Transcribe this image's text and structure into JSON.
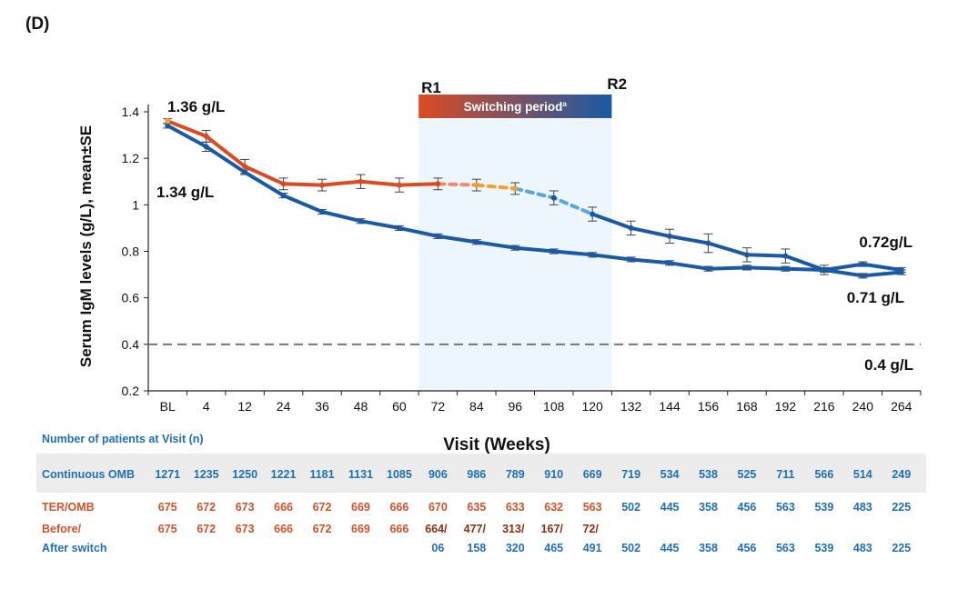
{
  "panel_label": "(D)",
  "colors": {
    "continuous": "#1a5aa5",
    "ter_omb": "#db4b22",
    "switch_orange": "#f0a030",
    "switch_lightblue": "#5aa7dd",
    "shade": "#eef6fd",
    "table_band": "#ececec",
    "table_blue": "#1f6fb5",
    "table_orange": "#d2522a",
    "reference_line": "#777777"
  },
  "chart_data": {
    "type": "line",
    "ylabel": "Serum IgM levels (g/L), mean±SE",
    "xlabel": "Visit (Weeks)",
    "ylim": [
      0.2,
      1.4
    ],
    "yticks": [
      "0.2",
      "0.4",
      "0.6",
      "0.8",
      "1",
      "1.2",
      "1.4"
    ],
    "categories": [
      "BL",
      "4",
      "12",
      "24",
      "36",
      "48",
      "60",
      "72",
      "84",
      "96",
      "108",
      "120",
      "132",
      "144",
      "156",
      "168",
      "192",
      "216",
      "240",
      "264"
    ],
    "series": [
      {
        "name": "Continuous OMB",
        "values": [
          1.34,
          1.25,
          1.14,
          1.04,
          0.97,
          0.93,
          0.9,
          0.865,
          0.84,
          0.815,
          0.8,
          0.785,
          0.765,
          0.75,
          0.725,
          0.73,
          0.725,
          0.72,
          0.745,
          0.72
        ],
        "se": [
          0.01,
          0.02,
          0.01,
          0.01,
          0.01,
          0.01,
          0.01,
          0.01,
          0.01,
          0.01,
          0.01,
          0.01,
          0.01,
          0.01,
          0.01,
          0.01,
          0.01,
          0.01,
          0.01,
          0.01
        ]
      },
      {
        "name": "TER/OMB",
        "values": [
          1.36,
          1.295,
          1.165,
          1.09,
          1.085,
          1.1,
          1.085,
          1.09,
          1.085,
          1.07,
          1.03,
          0.96,
          0.9,
          0.865,
          0.835,
          0.785,
          0.78,
          0.72,
          0.695,
          0.71
        ],
        "se": [
          0.01,
          0.025,
          0.03,
          0.025,
          0.025,
          0.03,
          0.03,
          0.025,
          0.025,
          0.025,
          0.03,
          0.03,
          0.03,
          0.03,
          0.04,
          0.03,
          0.03,
          0.02,
          0.01,
          0.01
        ]
      }
    ],
    "reference_line": {
      "y": 0.4,
      "label": "0.4 g/L"
    },
    "switching_period": {
      "start": "72",
      "end": "120",
      "label": "Switching period",
      "superscript": "a",
      "start_label": "R1",
      "end_label": "R2"
    },
    "annotations": [
      "1.36 g/L",
      "1.34 g/L",
      "0.72g/L",
      "0.71 g/L"
    ],
    "grid": false,
    "legend": "none"
  },
  "table": {
    "title": "Number of patients at Visit (n)",
    "rows": [
      {
        "label": "Continuous OMB",
        "values": [
          "1271",
          "1235",
          "1250",
          "1221",
          "1181",
          "1131",
          "1085",
          "906",
          "986",
          "789",
          "910",
          "669",
          "719",
          "534",
          "538",
          "525",
          "711",
          "566",
          "514",
          "249"
        ]
      },
      {
        "label": "TER/OMB",
        "values": [
          "675",
          "672",
          "673",
          "666",
          "672",
          "669",
          "666",
          "670",
          "635",
          "633",
          "632",
          "563",
          "502",
          "445",
          "358",
          "456",
          "563",
          "539",
          "483",
          "225"
        ]
      }
    ],
    "switch_row": {
      "label_1": "Before/",
      "label_2": "After switch",
      "before": [
        "675",
        "672",
        "673",
        "666",
        "672",
        "669",
        "666",
        "664",
        "477",
        "313",
        "167",
        "72"
      ],
      "after": [
        "06",
        "158",
        "320",
        "465",
        "491",
        "502",
        "445",
        "358",
        "456",
        "563",
        "539",
        "483",
        "225"
      ]
    }
  }
}
